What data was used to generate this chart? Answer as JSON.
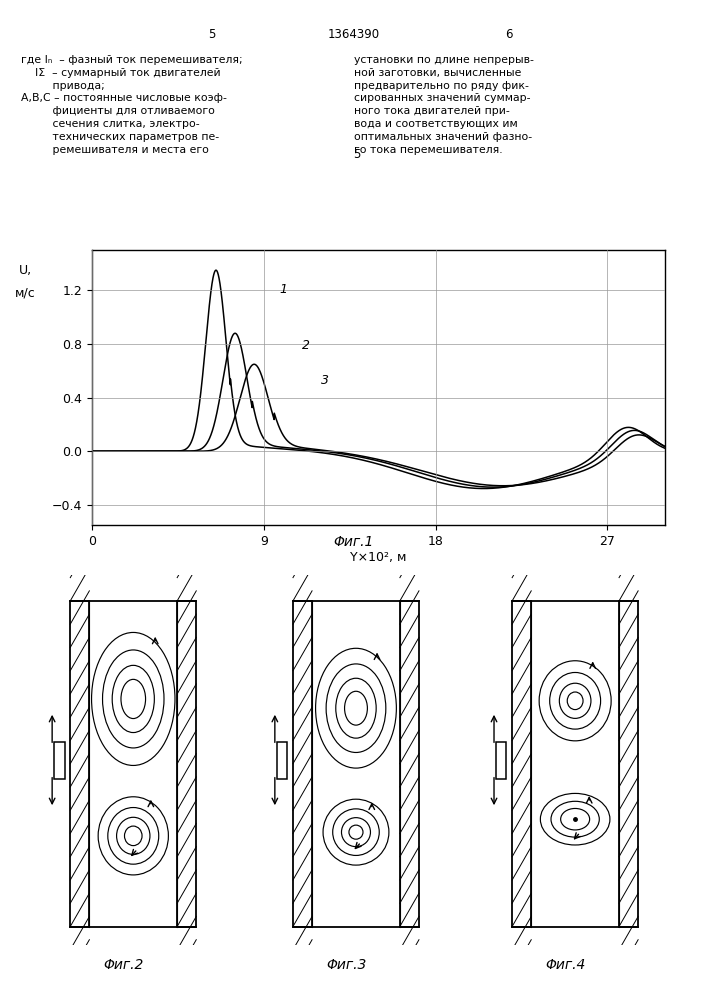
{
  "page_title": "1364390",
  "page_left": "5",
  "page_right": "6",
  "text_left_line1": "где I",
  "text_left_line1b": "n",
  "text_left_line1c": "  – фазный ток перемешивателя;",
  "text_left_lines": [
    "где Iₙ  – фазный ток перемешивателя;",
    "    IΣ  – суммарный ток двигателей",
    "         привода;",
    "A,B,C – постоянные числовые коэф-",
    "         фициенты для отливаемого",
    "         сечения слитка, электро-",
    "         технических параметров пе-",
    "         ремешивателя и места его"
  ],
  "text_right_lines": [
    "установки по длине непрерыв-",
    "ной заготовки, вычисленные",
    "предварительно по ряду фик-",
    "сированных значений суммар-",
    "ного тока двигателей при-",
    "вода и соответствующих им",
    "оптимальных значений фазно-",
    "го тока перемешивателя."
  ],
  "text_center": "5",
  "fig1_caption": "Φиг.1",
  "fig2_caption": "Φиг.2",
  "fig3_caption": "Φиг.3",
  "fig4_caption": "Φиг.4",
  "xticks": [
    0,
    9,
    18,
    27
  ],
  "yticks": [
    -0.4,
    0,
    0.4,
    0.8,
    1.2
  ],
  "xlim": [
    0,
    30
  ],
  "ylim": [
    -0.55,
    1.5
  ],
  "bg_color": "#ffffff"
}
